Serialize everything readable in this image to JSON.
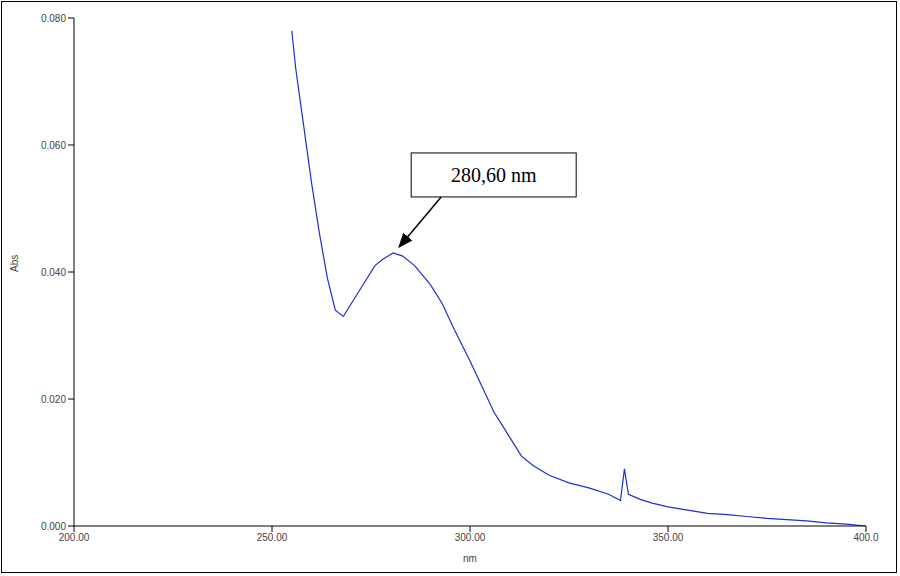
{
  "chart_data": {
    "type": "line",
    "x_label": "nm",
    "y_label": "Abs",
    "color": "#1f2fd0",
    "x": [
      255,
      256,
      258,
      260,
      262,
      264,
      266,
      268,
      270,
      273,
      276,
      278,
      280.6,
      283,
      286,
      290,
      293,
      296,
      300,
      303,
      306,
      310,
      313,
      316,
      320,
      325,
      330,
      335,
      338,
      339,
      340,
      343,
      346,
      350,
      355,
      360,
      365,
      370,
      375,
      380,
      385,
      390,
      395,
      400
    ],
    "values": [
      0.078,
      0.072,
      0.063,
      0.054,
      0.046,
      0.039,
      0.034,
      0.033,
      0.035,
      0.038,
      0.041,
      0.042,
      0.043,
      0.0425,
      0.041,
      0.038,
      0.035,
      0.031,
      0.026,
      0.022,
      0.018,
      0.014,
      0.011,
      0.0095,
      0.008,
      0.0068,
      0.006,
      0.005,
      0.004,
      0.009,
      0.005,
      0.0042,
      0.0036,
      0.003,
      0.0025,
      0.002,
      0.0018,
      0.0015,
      0.0012,
      0.001,
      0.0008,
      0.0005,
      0.0003,
      0.0
    ],
    "xlim": [
      200,
      400
    ],
    "ylim": [
      0,
      0.08
    ],
    "xticks": [
      {
        "value": 200,
        "label": "200.00"
      },
      {
        "value": 250,
        "label": "250.00"
      },
      {
        "value": 300,
        "label": "300.00"
      },
      {
        "value": 350,
        "label": "350.00"
      },
      {
        "value": 400,
        "label": "400.0"
      }
    ],
    "yticks": [
      {
        "value": 0,
        "label": "0.000"
      },
      {
        "value": 0.02,
        "label": "0.020"
      },
      {
        "value": 0.04,
        "label": "0.040"
      },
      {
        "value": 0.06,
        "label": "0.060"
      },
      {
        "value": 0.08,
        "label": "0.080"
      }
    ],
    "grid": false,
    "annotations": [
      {
        "x": 280.6,
        "y": 0.043,
        "text": "280,60 nm"
      }
    ]
  }
}
